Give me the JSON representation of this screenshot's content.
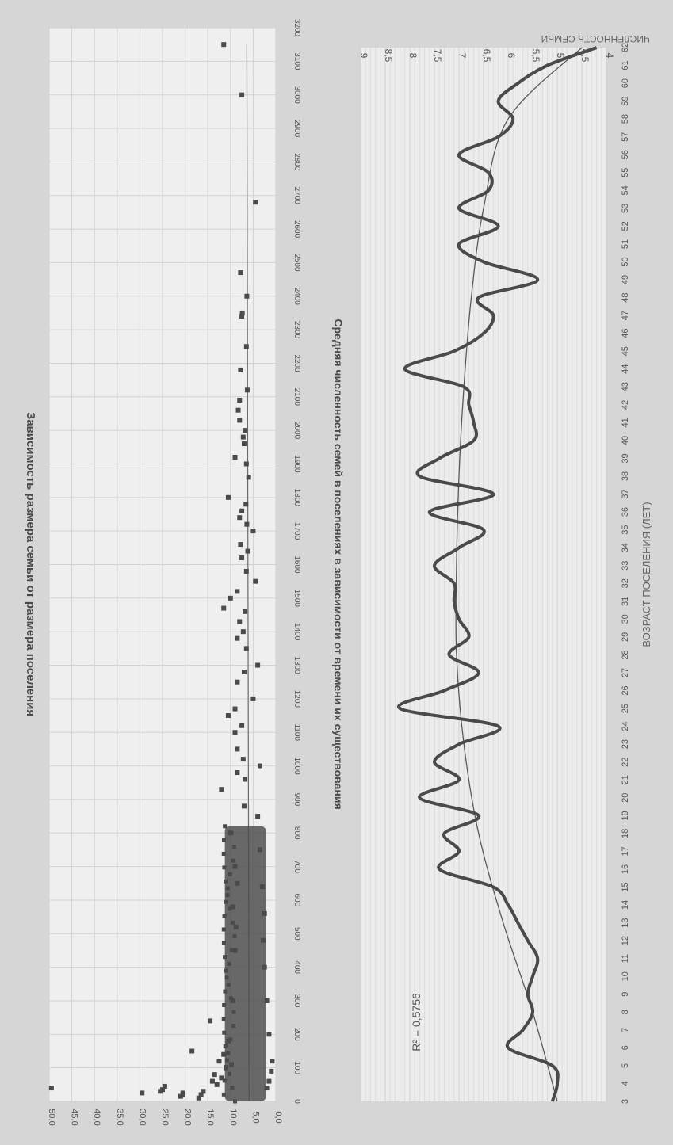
{
  "colors": {
    "background": "#d6d6d6",
    "panel": "#efefef",
    "grid": "#d2d2d2",
    "marks": "#4a4a4a",
    "text": "#555555"
  },
  "chart_data": [
    {
      "type": "scatter",
      "title": "Зависимость размера семьи от размера поселения",
      "xlabel": "",
      "ylabel": "",
      "xlim": [
        0,
        3200
      ],
      "ylim": [
        0,
        50
      ],
      "x_ticks": [
        "0",
        "100",
        "200",
        "300",
        "400",
        "500",
        "600",
        "700",
        "800",
        "900",
        "1000",
        "1100",
        "1200",
        "1300",
        "1400",
        "1500",
        "1600",
        "1700",
        "1800",
        "1900",
        "2000",
        "2100",
        "2200",
        "2300",
        "2400",
        "2500",
        "2600",
        "2700",
        "2800",
        "2900",
        "3000",
        "3100",
        "3200"
      ],
      "y_ticks": [
        "0,0",
        "5,0",
        "10,0",
        "15,0",
        "20,0",
        "25,0",
        "30,0",
        "35,0",
        "40,0",
        "45,0",
        "50,0"
      ],
      "grid": true,
      "trendline": {
        "type": "linear",
        "from": [
          0,
          5.9
        ],
        "to": [
          3150,
          6.4
        ]
      },
      "points": [
        [
          40,
          49.5
        ],
        [
          25,
          29.5
        ],
        [
          30,
          25.5
        ],
        [
          35,
          25
        ],
        [
          45,
          24.5
        ],
        [
          15,
          21
        ],
        [
          20,
          20.5
        ],
        [
          25,
          20.5
        ],
        [
          150,
          18.5
        ],
        [
          10,
          17
        ],
        [
          20,
          16.5
        ],
        [
          30,
          16
        ],
        [
          240,
          14.5
        ],
        [
          60,
          14
        ],
        [
          80,
          13.5
        ],
        [
          50,
          13
        ],
        [
          120,
          12.5
        ],
        [
          70,
          12
        ],
        [
          930,
          12
        ],
        [
          140,
          11.5
        ],
        [
          1470,
          11.5
        ],
        [
          1150,
          10.5
        ],
        [
          1800,
          10.5
        ],
        [
          1500,
          10
        ],
        [
          100,
          11
        ],
        [
          180,
          10.5
        ],
        [
          800,
          10
        ],
        [
          580,
          9.5
        ],
        [
          1170,
          9
        ],
        [
          1920,
          9
        ],
        [
          110,
          9.8
        ],
        [
          300,
          9.5
        ],
        [
          450,
          9
        ],
        [
          520,
          8.8
        ],
        [
          650,
          8.5
        ],
        [
          700,
          9
        ],
        [
          980,
          8.5
        ],
        [
          1050,
          8.5
        ],
        [
          1100,
          9
        ],
        [
          1250,
          8.5
        ],
        [
          1380,
          8.5
        ],
        [
          1430,
          8
        ],
        [
          1520,
          8.5
        ],
        [
          1740,
          8
        ],
        [
          2030,
          8
        ],
        [
          2060,
          8.3
        ],
        [
          2090,
          8
        ],
        [
          2180,
          7.8
        ],
        [
          2340,
          7.5
        ],
        [
          2350,
          7.4
        ],
        [
          2470,
          7.8
        ],
        [
          1620,
          7.5
        ],
        [
          1660,
          7.8
        ],
        [
          1760,
          7.5
        ],
        [
          1960,
          7
        ],
        [
          1980,
          7.2
        ],
        [
          3000,
          7.5
        ],
        [
          3150,
          11.5
        ],
        [
          2680,
          4.5
        ],
        [
          750,
          3.5
        ],
        [
          640,
          3
        ],
        [
          560,
          2.5
        ],
        [
          1000,
          3.5
        ],
        [
          1300,
          4
        ],
        [
          1550,
          4.5
        ],
        [
          1700,
          5
        ],
        [
          1860,
          6
        ],
        [
          40,
          2
        ],
        [
          60,
          1.5
        ],
        [
          90,
          1
        ],
        [
          120,
          0.8
        ],
        [
          200,
          1.5
        ],
        [
          300,
          2
        ],
        [
          400,
          2.5
        ],
        [
          480,
          2.8
        ],
        [
          850,
          4
        ],
        [
          1200,
          5
        ],
        [
          880,
          7
        ],
        [
          960,
          6.8
        ],
        [
          1020,
          7.2
        ],
        [
          1120,
          7.5
        ],
        [
          1280,
          7
        ],
        [
          1350,
          6.5
        ],
        [
          1400,
          7.2
        ],
        [
          1460,
          6.8
        ],
        [
          1580,
          6.5
        ],
        [
          1640,
          6.2
        ],
        [
          1720,
          6.4
        ],
        [
          1780,
          6.6
        ],
        [
          1900,
          6.5
        ],
        [
          2000,
          6.8
        ],
        [
          2120,
          6.3
        ],
        [
          2250,
          6.5
        ],
        [
          2400,
          6.4
        ]
      ],
      "dense_cluster": {
        "x_range": [
          0,
          820
        ],
        "y_range": [
          1.5,
          13
        ]
      }
    },
    {
      "type": "line",
      "title": "Средняя численность семей в поселениях в зависимости от времени их существования",
      "xlabel": "ВОЗРАСТ ПОСЕЛЕНИЯ (ЛЕТ)",
      "ylabel": "ЧИСЛЕННОСТЬ СЕМЬИ",
      "annotation": "R² = 0,5756",
      "xlim": [
        3,
        62
      ],
      "ylim": [
        4,
        9
      ],
      "x_ticks": [
        "3",
        "4",
        "5",
        "6",
        "7",
        "8",
        "9",
        "10",
        "11",
        "12",
        "13",
        "14",
        "15",
        "16",
        "17",
        "18",
        "19",
        "20",
        "21",
        "22",
        "23",
        "24",
        "25",
        "26",
        "27",
        "28",
        "29",
        "30",
        "31",
        "32",
        "33",
        "34",
        "35",
        "36",
        "37",
        "38",
        "39",
        "40",
        "41",
        "42",
        "43",
        "44",
        "45",
        "46",
        "47",
        "48",
        "49",
        "50",
        "51",
        "52",
        "53",
        "54",
        "55",
        "56",
        "57",
        "58",
        "59",
        "60",
        "61",
        "62"
      ],
      "y_ticks": [
        "4",
        "4,5",
        "5",
        "5,5",
        "6",
        "6,5",
        "7",
        "7,5",
        "8",
        "8,5",
        "9"
      ],
      "grid": true,
      "series": [
        {
          "x": [
            3,
            4,
            5,
            6,
            7,
            8,
            9,
            10,
            11,
            12,
            13,
            14,
            15,
            16,
            17,
            18,
            19,
            20,
            21,
            22,
            23,
            24,
            25,
            26,
            27,
            28,
            29,
            30,
            31,
            32,
            33,
            34,
            35,
            36,
            37,
            38,
            39,
            40,
            41,
            42,
            43,
            44,
            45,
            46,
            47,
            48,
            49,
            50,
            51,
            52,
            53,
            54,
            55,
            56,
            57,
            58,
            59,
            60,
            61,
            62
          ],
          "values": [
            5.1,
            5.0,
            5.1,
            6.0,
            5.7,
            5.5,
            5.6,
            5.5,
            5.4,
            5.6,
            5.8,
            6.0,
            6.3,
            7.4,
            7.0,
            7.3,
            6.6,
            7.8,
            7.0,
            7.5,
            7.0,
            6.2,
            8.2,
            7.3,
            6.6,
            7.2,
            6.8,
            7.0,
            7.1,
            7.1,
            7.5,
            7.0,
            6.5,
            7.6,
            6.3,
            7.8,
            7.4,
            6.7,
            6.7,
            6.8,
            6.9,
            8.1,
            7.1,
            6.5,
            6.3,
            6.6,
            5.4,
            6.5,
            7.0,
            6.2,
            7.0,
            6.4,
            6.4,
            7.0,
            6.2,
            5.9,
            6.2,
            5.8,
            5.2,
            4.2
          ]
        }
      ],
      "trendline": {
        "type": "polynomial",
        "x": [
          3,
          8,
          13,
          18,
          23,
          28,
          33,
          38,
          43,
          48,
          53,
          58,
          62
        ],
        "values": [
          5.0,
          5.5,
          6.1,
          6.6,
          6.9,
          7.05,
          7.05,
          7.0,
          6.9,
          6.75,
          6.5,
          6.0,
          4.5
        ]
      }
    }
  ]
}
